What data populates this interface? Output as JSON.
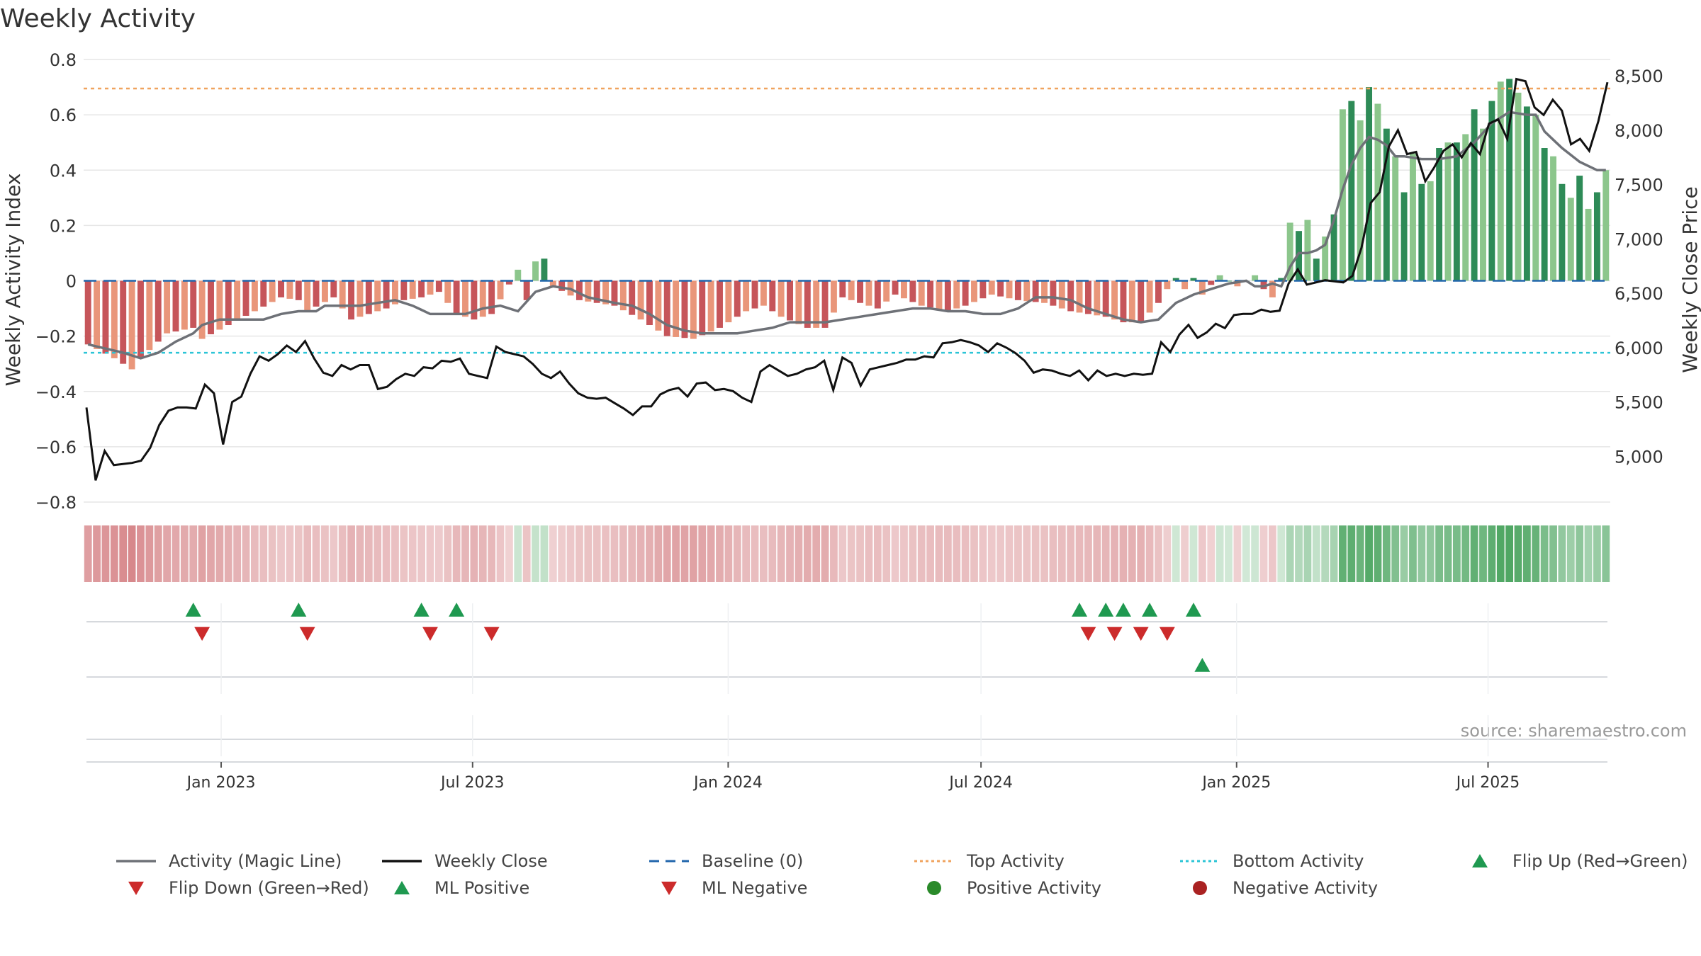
{
  "chart_data": {
    "type": "bar",
    "title": "Weekly Activity",
    "source": "source: sharemaestro.com",
    "y_left": {
      "label": "Weekly Activity Index",
      "range": [
        -0.8,
        0.8
      ],
      "ticks": [
        -0.8,
        -0.6,
        -0.4,
        -0.2,
        0,
        0.2,
        0.4,
        0.6,
        0.8
      ],
      "tick_labels": [
        "−0.8",
        "−0.6",
        "−0.4",
        "−0.2",
        "0",
        "0.2",
        "0.4",
        "0.6",
        "0.8"
      ]
    },
    "y_right": {
      "label": "Weekly Close Price",
      "range": [
        4580,
        8650
      ],
      "ticks": [
        5000,
        5500,
        6000,
        6500,
        7000,
        7500,
        8000,
        8500
      ],
      "tick_labels": [
        "5,000",
        "5,500",
        "6,000",
        "6,500",
        "7,000",
        "7,500",
        "8,000",
        "8,500"
      ]
    },
    "x_axis": {
      "start": "2022-09-24",
      "end": "2025-09-27",
      "ticks": [
        "2023-01-01",
        "2023-07-01",
        "2024-01-01",
        "2024-07-01",
        "2025-01-01",
        "2025-07-01"
      ],
      "tick_labels": [
        "Jan 2023",
        "Jul 2023",
        "Jan 2024",
        "Jul 2024",
        "Jan 2025",
        "Jul 2025"
      ]
    },
    "reference_lines": {
      "baseline": 0,
      "top_activity": 0.695,
      "bottom_activity": -0.26
    },
    "activity_keypoints": [
      [
        0,
        -0.23
      ],
      [
        3,
        -0.28
      ],
      [
        5,
        -0.32
      ],
      [
        6,
        -0.28
      ],
      [
        9,
        -0.19
      ],
      [
        12,
        -0.17
      ],
      [
        13,
        -0.21
      ],
      [
        16,
        -0.16
      ],
      [
        19,
        -0.11
      ],
      [
        22,
        -0.06
      ],
      [
        24,
        -0.07
      ],
      [
        25,
        -0.11
      ],
      [
        28,
        -0.06
      ],
      [
        30,
        -0.14
      ],
      [
        32,
        -0.12
      ],
      [
        34,
        -0.1
      ],
      [
        36,
        -0.07
      ],
      [
        38,
        -0.06
      ],
      [
        40,
        -0.04
      ],
      [
        42,
        -0.12
      ],
      [
        44,
        -0.14
      ],
      [
        46,
        -0.12
      ],
      [
        49,
        0.04
      ],
      [
        50,
        -0.07
      ],
      [
        51,
        0.07
      ],
      [
        52,
        0.08
      ],
      [
        53,
        -0.02
      ],
      [
        56,
        -0.07
      ],
      [
        60,
        -0.09
      ],
      [
        63,
        -0.14
      ],
      [
        66,
        -0.2
      ],
      [
        69,
        -0.21
      ],
      [
        72,
        -0.17
      ],
      [
        75,
        -0.11
      ],
      [
        77,
        -0.09
      ],
      [
        79,
        -0.13
      ],
      [
        82,
        -0.17
      ],
      [
        84,
        -0.17
      ],
      [
        86,
        -0.06
      ],
      [
        88,
        -0.08
      ],
      [
        90,
        -0.1
      ],
      [
        92,
        -0.05
      ],
      [
        95,
        -0.09
      ],
      [
        98,
        -0.11
      ],
      [
        100,
        -0.09
      ],
      [
        103,
        -0.05
      ],
      [
        106,
        -0.07
      ],
      [
        109,
        -0.08
      ],
      [
        112,
        -0.11
      ],
      [
        114,
        -0.12
      ],
      [
        116,
        -0.13
      ],
      [
        118,
        -0.15
      ],
      [
        120,
        -0.15
      ],
      [
        122,
        -0.08
      ],
      [
        123,
        -0.03
      ],
      [
        124,
        0.01
      ],
      [
        125,
        -0.03
      ],
      [
        126,
        0.01
      ],
      [
        127,
        -0.05
      ],
      [
        129,
        0.02
      ],
      [
        131,
        -0.02
      ],
      [
        133,
        0.02
      ],
      [
        134,
        -0.03
      ],
      [
        135,
        -0.06
      ],
      [
        136,
        0.01
      ],
      [
        137,
        0.21
      ],
      [
        138,
        0.18
      ],
      [
        139,
        0.22
      ],
      [
        140,
        0.08
      ],
      [
        141,
        0.16
      ],
      [
        142,
        0.24
      ],
      [
        143,
        0.62
      ],
      [
        144,
        0.65
      ],
      [
        145,
        0.58
      ],
      [
        146,
        0.7
      ],
      [
        147,
        0.64
      ],
      [
        148,
        0.55
      ],
      [
        149,
        0.45
      ],
      [
        150,
        0.32
      ],
      [
        151,
        0.46
      ],
      [
        152,
        0.35
      ],
      [
        153,
        0.36
      ],
      [
        154,
        0.48
      ],
      [
        155,
        0.5
      ],
      [
        156,
        0.5
      ],
      [
        157,
        0.53
      ],
      [
        158,
        0.62
      ],
      [
        159,
        0.55
      ],
      [
        160,
        0.65
      ],
      [
        161,
        0.72
      ],
      [
        162,
        0.73
      ],
      [
        163,
        0.68
      ],
      [
        164,
        0.63
      ],
      [
        165,
        0.6
      ],
      [
        166,
        0.48
      ],
      [
        167,
        0.45
      ],
      [
        168,
        0.35
      ],
      [
        169,
        0.3
      ],
      [
        170,
        0.38
      ],
      [
        171,
        0.26
      ],
      [
        172,
        0.32
      ],
      [
        173,
        0.4
      ]
    ],
    "magic_line_keypoints": [
      [
        0,
        -0.23
      ],
      [
        4,
        -0.26
      ],
      [
        6,
        -0.28
      ],
      [
        8,
        -0.26
      ],
      [
        10,
        -0.22
      ],
      [
        12,
        -0.19
      ],
      [
        13,
        -0.16
      ],
      [
        15,
        -0.14
      ],
      [
        18,
        -0.14
      ],
      [
        20,
        -0.14
      ],
      [
        22,
        -0.12
      ],
      [
        24,
        -0.11
      ],
      [
        26,
        -0.11
      ],
      [
        27,
        -0.09
      ],
      [
        29,
        -0.09
      ],
      [
        31,
        -0.09
      ],
      [
        33,
        -0.08
      ],
      [
        35,
        -0.07
      ],
      [
        37,
        -0.09
      ],
      [
        39,
        -0.12
      ],
      [
        41,
        -0.12
      ],
      [
        43,
        -0.12
      ],
      [
        45,
        -0.1
      ],
      [
        47,
        -0.09
      ],
      [
        49,
        -0.11
      ],
      [
        51,
        -0.04
      ],
      [
        53,
        -0.02
      ],
      [
        55,
        -0.03
      ],
      [
        57,
        -0.06
      ],
      [
        60,
        -0.08
      ],
      [
        62,
        -0.09
      ],
      [
        64,
        -0.12
      ],
      [
        66,
        -0.16
      ],
      [
        68,
        -0.18
      ],
      [
        70,
        -0.19
      ],
      [
        72,
        -0.19
      ],
      [
        74,
        -0.19
      ],
      [
        76,
        -0.18
      ],
      [
        78,
        -0.17
      ],
      [
        80,
        -0.15
      ],
      [
        82,
        -0.15
      ],
      [
        84,
        -0.15
      ],
      [
        86,
        -0.14
      ],
      [
        88,
        -0.13
      ],
      [
        90,
        -0.12
      ],
      [
        92,
        -0.11
      ],
      [
        94,
        -0.1
      ],
      [
        96,
        -0.1
      ],
      [
        98,
        -0.11
      ],
      [
        100,
        -0.11
      ],
      [
        102,
        -0.12
      ],
      [
        104,
        -0.12
      ],
      [
        106,
        -0.1
      ],
      [
        108,
        -0.06
      ],
      [
        110,
        -0.06
      ],
      [
        112,
        -0.07
      ],
      [
        114,
        -0.1
      ],
      [
        116,
        -0.12
      ],
      [
        118,
        -0.14
      ],
      [
        120,
        -0.15
      ],
      [
        122,
        -0.14
      ],
      [
        124,
        -0.08
      ],
      [
        126,
        -0.05
      ],
      [
        128,
        -0.03
      ],
      [
        130,
        -0.01
      ],
      [
        132,
        0
      ],
      [
        133,
        -0.02
      ],
      [
        134,
        -0.02
      ],
      [
        135,
        -0.01
      ],
      [
        136,
        -0.02
      ],
      [
        137,
        0.05
      ],
      [
        138,
        0.1
      ],
      [
        139,
        0.1
      ],
      [
        140,
        0.11
      ],
      [
        141,
        0.13
      ],
      [
        142,
        0.22
      ],
      [
        143,
        0.33
      ],
      [
        144,
        0.42
      ],
      [
        145,
        0.48
      ],
      [
        146,
        0.52
      ],
      [
        147,
        0.51
      ],
      [
        148,
        0.49
      ],
      [
        149,
        0.45
      ],
      [
        150,
        0.45
      ],
      [
        152,
        0.44
      ],
      [
        154,
        0.44
      ],
      [
        156,
        0.45
      ],
      [
        158,
        0.5
      ],
      [
        160,
        0.57
      ],
      [
        162,
        0.61
      ],
      [
        164,
        0.6
      ],
      [
        165,
        0.6
      ],
      [
        166,
        0.54
      ],
      [
        167,
        0.51
      ],
      [
        168,
        0.48
      ],
      [
        170,
        0.43
      ],
      [
        172,
        0.4
      ],
      [
        173,
        0.4
      ]
    ],
    "weekly_close_keypoints": [
      [
        0,
        5450
      ],
      [
        1,
        4780
      ],
      [
        2,
        5050
      ],
      [
        3,
        4920
      ],
      [
        5,
        4940
      ],
      [
        6,
        4960
      ],
      [
        7,
        5080
      ],
      [
        8,
        5290
      ],
      [
        9,
        5420
      ],
      [
        10,
        5450
      ],
      [
        11,
        5450
      ],
      [
        12,
        5440
      ],
      [
        13,
        5660
      ],
      [
        14,
        5580
      ],
      [
        15,
        5110
      ],
      [
        16,
        5500
      ],
      [
        17,
        5550
      ],
      [
        18,
        5760
      ],
      [
        19,
        5920
      ],
      [
        20,
        5880
      ],
      [
        21,
        5940
      ],
      [
        22,
        6020
      ],
      [
        23,
        5960
      ],
      [
        24,
        6060
      ],
      [
        25,
        5900
      ],
      [
        26,
        5770
      ],
      [
        27,
        5740
      ],
      [
        28,
        5840
      ],
      [
        29,
        5800
      ],
      [
        30,
        5840
      ],
      [
        31,
        5840
      ],
      [
        32,
        5620
      ],
      [
        33,
        5640
      ],
      [
        34,
        5710
      ],
      [
        35,
        5760
      ],
      [
        36,
        5740
      ],
      [
        37,
        5820
      ],
      [
        38,
        5810
      ],
      [
        39,
        5880
      ],
      [
        40,
        5870
      ],
      [
        41,
        5900
      ],
      [
        42,
        5760
      ],
      [
        43,
        5740
      ],
      [
        44,
        5720
      ],
      [
        45,
        6010
      ],
      [
        46,
        5960
      ],
      [
        47,
        5940
      ],
      [
        48,
        5920
      ],
      [
        49,
        5850
      ],
      [
        50,
        5760
      ],
      [
        51,
        5720
      ],
      [
        52,
        5780
      ],
      [
        53,
        5670
      ],
      [
        54,
        5580
      ],
      [
        55,
        5540
      ],
      [
        56,
        5530
      ],
      [
        57,
        5540
      ],
      [
        58,
        5490
      ],
      [
        59,
        5440
      ],
      [
        60,
        5380
      ],
      [
        61,
        5460
      ],
      [
        62,
        5460
      ],
      [
        63,
        5570
      ],
      [
        64,
        5610
      ],
      [
        65,
        5630
      ],
      [
        66,
        5550
      ],
      [
        67,
        5670
      ],
      [
        68,
        5680
      ],
      [
        69,
        5610
      ],
      [
        70,
        5620
      ],
      [
        71,
        5600
      ],
      [
        72,
        5540
      ],
      [
        73,
        5500
      ],
      [
        74,
        5780
      ],
      [
        75,
        5840
      ],
      [
        76,
        5790
      ],
      [
        77,
        5740
      ],
      [
        78,
        5760
      ],
      [
        79,
        5800
      ],
      [
        80,
        5820
      ],
      [
        81,
        5880
      ],
      [
        82,
        5610
      ],
      [
        83,
        5910
      ],
      [
        84,
        5860
      ],
      [
        85,
        5650
      ],
      [
        86,
        5800
      ],
      [
        87,
        5820
      ],
      [
        88,
        5840
      ],
      [
        89,
        5860
      ],
      [
        90,
        5890
      ],
      [
        91,
        5890
      ],
      [
        92,
        5920
      ],
      [
        93,
        5910
      ],
      [
        94,
        6040
      ],
      [
        95,
        6050
      ],
      [
        96,
        6070
      ],
      [
        97,
        6050
      ],
      [
        98,
        6020
      ],
      [
        99,
        5960
      ],
      [
        100,
        6040
      ],
      [
        101,
        6000
      ],
      [
        102,
        5950
      ],
      [
        103,
        5880
      ],
      [
        104,
        5770
      ],
      [
        105,
        5800
      ],
      [
        106,
        5790
      ],
      [
        107,
        5760
      ],
      [
        108,
        5740
      ],
      [
        109,
        5790
      ],
      [
        110,
        5700
      ],
      [
        111,
        5790
      ],
      [
        112,
        5740
      ],
      [
        113,
        5760
      ],
      [
        114,
        5740
      ],
      [
        115,
        5760
      ],
      [
        116,
        5750
      ],
      [
        117,
        5760
      ],
      [
        118,
        6050
      ],
      [
        119,
        5960
      ],
      [
        120,
        6120
      ],
      [
        121,
        6210
      ],
      [
        122,
        6090
      ],
      [
        123,
        6140
      ],
      [
        124,
        6220
      ],
      [
        125,
        6180
      ],
      [
        126,
        6300
      ],
      [
        127,
        6310
      ],
      [
        128,
        6310
      ],
      [
        129,
        6350
      ],
      [
        130,
        6330
      ],
      [
        131,
        6340
      ],
      [
        132,
        6590
      ],
      [
        133,
        6720
      ],
      [
        134,
        6580
      ],
      [
        135,
        6600
      ],
      [
        136,
        6620
      ],
      [
        137,
        6610
      ],
      [
        138,
        6600
      ],
      [
        139,
        6660
      ],
      [
        140,
        6920
      ],
      [
        141,
        7330
      ],
      [
        142,
        7430
      ],
      [
        143,
        7850
      ],
      [
        144,
        8000
      ],
      [
        145,
        7780
      ],
      [
        146,
        7800
      ],
      [
        147,
        7530
      ],
      [
        148,
        7660
      ],
      [
        149,
        7810
      ],
      [
        150,
        7870
      ],
      [
        151,
        7750
      ],
      [
        152,
        7880
      ],
      [
        153,
        7780
      ],
      [
        154,
        8060
      ],
      [
        155,
        8100
      ],
      [
        156,
        7920
      ],
      [
        157,
        8470
      ],
      [
        158,
        8450
      ],
      [
        159,
        8210
      ],
      [
        160,
        8140
      ],
      [
        161,
        8280
      ],
      [
        162,
        8180
      ],
      [
        163,
        7870
      ],
      [
        164,
        7920
      ],
      [
        165,
        7810
      ],
      [
        166,
        8080
      ],
      [
        167,
        8440
      ]
    ],
    "colors": {
      "magic_line": "#6e7177",
      "weekly_close": "#111111",
      "baseline": "#2166ac",
      "top_activity": "#f0a35e",
      "bottom_activity": "#2bc4d6",
      "strong_positive": "#2e8b57",
      "weak_positive": "#8cc68c",
      "strong_negative": "#c6555a",
      "weak_negative": "#e9967a",
      "flip_up": "#1f9950",
      "flip_down": "#cc2b2b",
      "positive_dot": "#2a8a2a",
      "negative_dot": "#aa2222",
      "grid": "#e6e6e6"
    },
    "flip_up_indices": [
      12,
      24,
      38,
      42,
      113,
      116,
      118,
      121,
      126
    ],
    "flip_down_indices": [
      13,
      25,
      39,
      46,
      114,
      117,
      120,
      123
    ],
    "ml_positive_indices": [
      127
    ],
    "ml_negative_indices": []
  },
  "legend": [
    {
      "label": "Activity (Magic Line)",
      "style": "line",
      "color": "#6e7177"
    },
    {
      "label": "Weekly Close",
      "style": "line",
      "color": "#111111"
    },
    {
      "label": "Baseline (0)",
      "style": "dash",
      "color": "#2166ac"
    },
    {
      "label": "Top Activity",
      "style": "dot",
      "color": "#f0a35e"
    },
    {
      "label": "Bottom Activity",
      "style": "dot",
      "color": "#2bc4d6"
    },
    {
      "label": "Flip Up (Red→Green)",
      "style": "tri-up",
      "color": "#1f9950"
    },
    {
      "label": "Flip Down (Green→Red)",
      "style": "tri-down",
      "color": "#cc2b2b"
    },
    {
      "label": "ML Positive",
      "style": "tri-up",
      "color": "#1f9950"
    },
    {
      "label": "ML Negative",
      "style": "tri-down",
      "color": "#cc2b2b"
    },
    {
      "label": "Positive Activity",
      "style": "circle",
      "color": "#2a8a2a"
    },
    {
      "label": "Negative Activity",
      "style": "circle",
      "color": "#aa2222"
    }
  ]
}
